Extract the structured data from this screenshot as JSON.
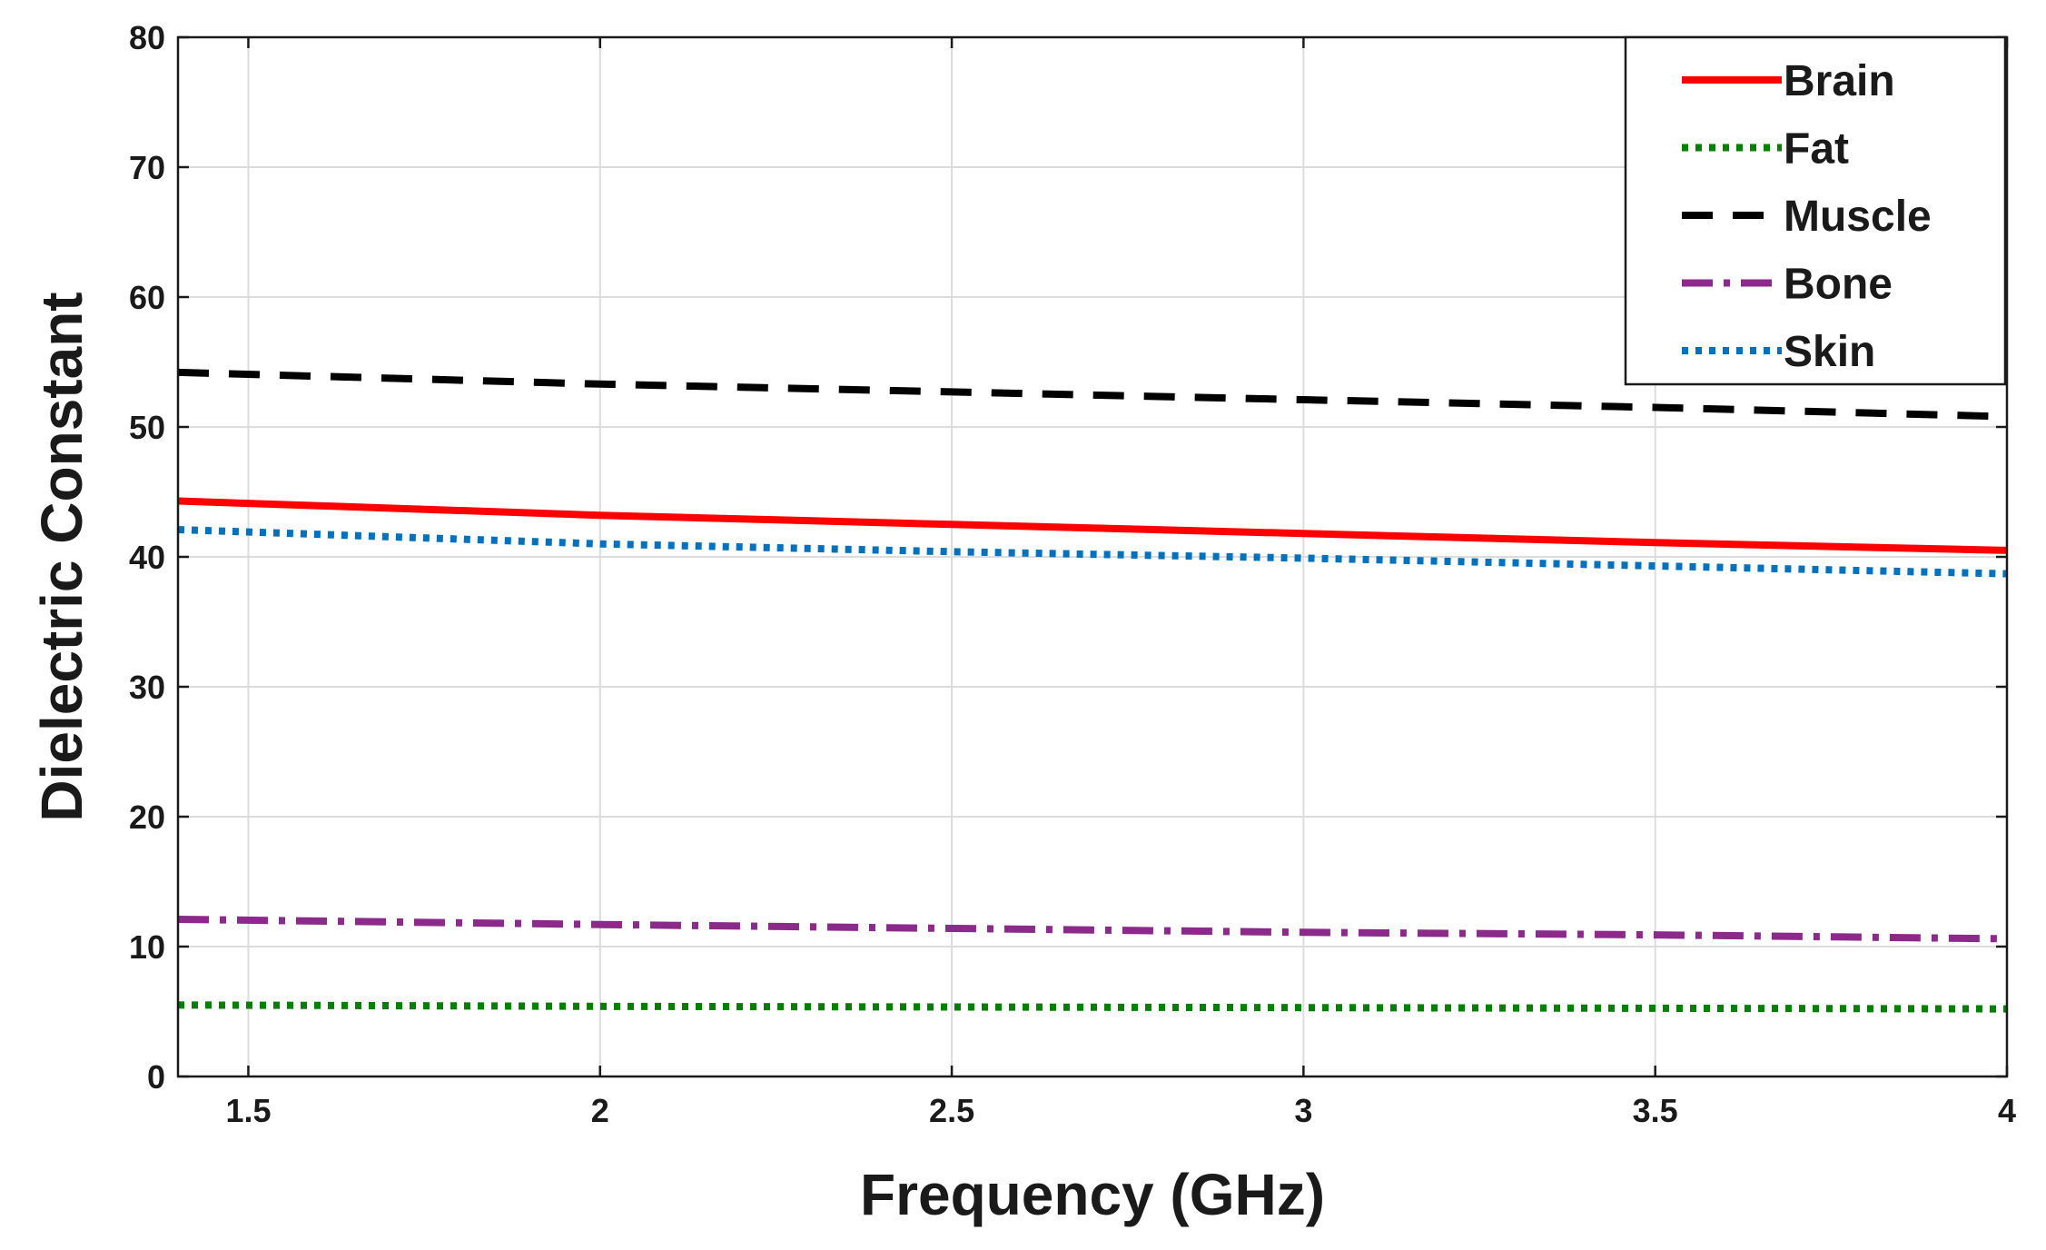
{
  "chart_data": {
    "type": "line",
    "xlabel": "Frequency (GHz)",
    "ylabel": "Dielectric Constant",
    "xlim": [
      1.4,
      4
    ],
    "ylim": [
      0,
      80
    ],
    "xticks": [
      "1.5",
      "2",
      "2.5",
      "3",
      "3.5",
      "4"
    ],
    "xtick_values": [
      1.5,
      2,
      2.5,
      3,
      3.5,
      4
    ],
    "yticks": [
      "0",
      "10",
      "20",
      "30",
      "40",
      "50",
      "60",
      "70",
      "80"
    ],
    "ytick_values": [
      0,
      10,
      20,
      30,
      40,
      50,
      60,
      70,
      80
    ],
    "grid": true,
    "legend_position": "top-right",
    "x": [
      1.4,
      2,
      2.5,
      3,
      3.5,
      4
    ],
    "series": [
      {
        "name": "Brain",
        "color": "#ff0000",
        "style": "solid",
        "values": [
          44.3,
          43.2,
          42.5,
          41.8,
          41.1,
          40.5
        ]
      },
      {
        "name": "Fat",
        "color": "#008000",
        "style": "dotted",
        "values": [
          5.5,
          5.4,
          5.35,
          5.3,
          5.25,
          5.2
        ]
      },
      {
        "name": "Muscle",
        "color": "#000000",
        "style": "dashed",
        "values": [
          54.2,
          53.3,
          52.7,
          52.1,
          51.5,
          50.8
        ]
      },
      {
        "name": "Bone",
        "color": "#8b2a8b",
        "style": "dash-dot",
        "values": [
          12.1,
          11.7,
          11.4,
          11.1,
          10.9,
          10.6
        ]
      },
      {
        "name": "Skin",
        "color": "#0072bd",
        "style": "dotted",
        "values": [
          42.1,
          41.0,
          40.4,
          39.9,
          39.3,
          38.7
        ]
      }
    ]
  }
}
